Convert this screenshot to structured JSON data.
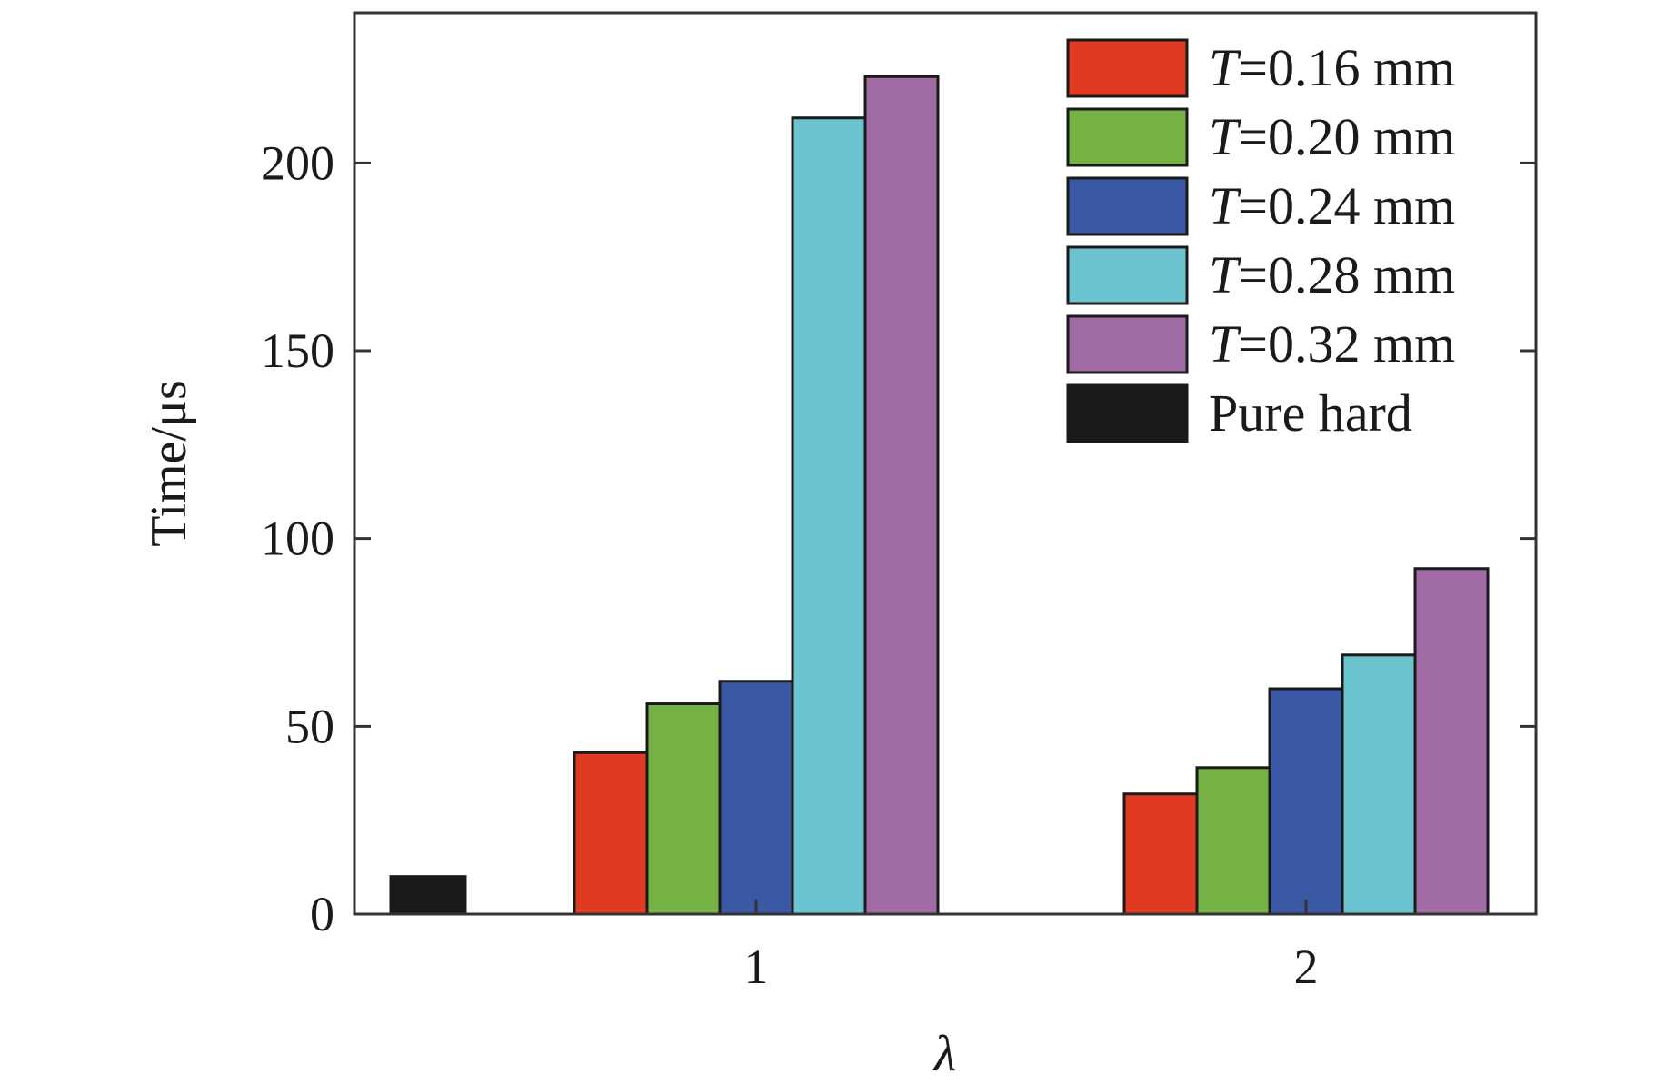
{
  "chart_data": {
    "type": "bar",
    "title": "",
    "xlabel": "λ",
    "ylabel": "Time/μs",
    "categories": [
      "1",
      "2"
    ],
    "ylim": [
      0,
      240
    ],
    "yticks": [
      0,
      50,
      100,
      150,
      200
    ],
    "grid": false,
    "legend_position": "top-right",
    "series": [
      {
        "name_prefix": "T",
        "name_suffix": "=0.16 mm",
        "color": "#e03a22",
        "values": [
          43,
          32
        ]
      },
      {
        "name_prefix": "T",
        "name_suffix": "=0.20 mm",
        "color": "#76b146",
        "values": [
          56,
          39
        ]
      },
      {
        "name_prefix": "T",
        "name_suffix": "=0.24 mm",
        "color": "#3a58a4",
        "values": [
          62,
          60
        ]
      },
      {
        "name_prefix": "T",
        "name_suffix": "=0.28 mm",
        "color": "#6cc3d0",
        "values": [
          212,
          69
        ]
      },
      {
        "name_prefix": "T",
        "name_suffix": "=0.32 mm",
        "color": "#a06aa4",
        "values": [
          223,
          92
        ]
      }
    ],
    "reference": {
      "name": "Pure hard",
      "color": "#1a1a1a",
      "value": 10
    }
  }
}
